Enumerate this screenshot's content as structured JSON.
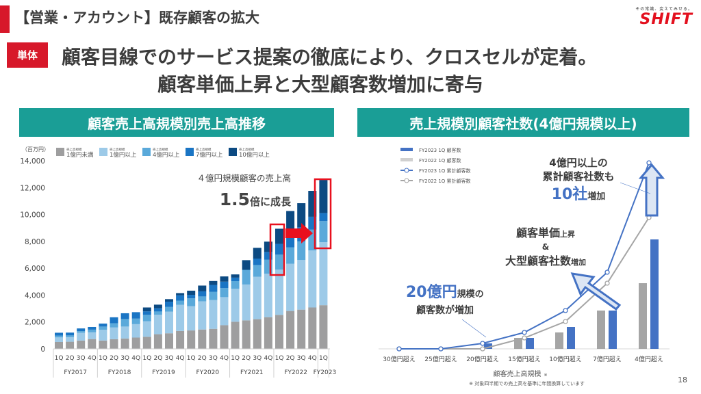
{
  "header": {
    "title": "【営業・アカウント】既存顧客の拡大",
    "logo_tagline": "その常識、変えてみせる。",
    "logo_text": "SHIFT"
  },
  "badge": "単体",
  "message": {
    "line1": "顧客目線でのサービス提案の徹底により、クロスセルが定着。",
    "line2": "顧客単価上昇と大型顧客数増加に寄与"
  },
  "colors": {
    "accent_red": "#d7182a",
    "teal": "#1a9e96",
    "blue": "#4472c4"
  },
  "footer": {
    "note": "※ 対象四半期での売上高を基準に年間換算しています",
    "page": "18"
  },
  "chart_data": [
    {
      "type": "bar",
      "stacked": true,
      "title": "顧客売上高規模別売上高推移",
      "ylabel": "（百万円）",
      "ylim": [
        0,
        14000
      ],
      "yticks": [
        "0",
        "2,000",
        "4,000",
        "6,000",
        "8,000",
        "10,000",
        "12,000",
        "14,000"
      ],
      "categories": [
        "1Q",
        "2Q",
        "3Q",
        "4Q",
        "1Q",
        "2Q",
        "3Q",
        "4Q",
        "1Q",
        "2Q",
        "3Q",
        "4Q",
        "1Q",
        "2Q",
        "3Q",
        "4Q",
        "1Q",
        "2Q",
        "3Q",
        "4Q",
        "1Q",
        "2Q",
        "3Q",
        "4Q",
        "1Q"
      ],
      "groups": [
        {
          "label": "FY2017",
          "n": 4
        },
        {
          "label": "FY2018",
          "n": 4
        },
        {
          "label": "FY2019",
          "n": 4
        },
        {
          "label": "FY2020",
          "n": 4
        },
        {
          "label": "FY2021",
          "n": 4
        },
        {
          "label": "FY2022",
          "n": 4
        },
        {
          "label": "FY2023",
          "n": 1
        }
      ],
      "legend_prefix": "売上高規模",
      "series": [
        {
          "name": "1億円未満",
          "color": "#9e9e9f",
          "values": [
            510,
            530,
            620,
            730,
            620,
            720,
            770,
            840,
            900,
            1090,
            1160,
            1330,
            1370,
            1440,
            1490,
            1760,
            2020,
            2120,
            2210,
            2360,
            2530,
            2820,
            2920,
            3080,
            3250
          ]
        },
        {
          "name": "1億円以上",
          "color": "#9dcae8",
          "values": [
            340,
            340,
            580,
            500,
            800,
            870,
            890,
            1000,
            1150,
            1450,
            1610,
            1950,
            1810,
            2100,
            2140,
            2090,
            2460,
            2670,
            3160,
            3230,
            3370,
            3510,
            3690,
            4250,
            4690
          ]
        },
        {
          "name": "4億円以上",
          "color": "#5aa9da",
          "values": [
            140,
            130,
            120,
            200,
            240,
            320,
            560,
            410,
            480,
            240,
            360,
            310,
            580,
            360,
            620,
            670,
            560,
            1090,
            870,
            1040,
            1110,
            1230,
            1390,
            1540,
            1570
          ]
        },
        {
          "name": "7億円以上",
          "color": "#1a75c4",
          "values": [
            210,
            210,
            200,
            200,
            220,
            440,
            430,
            480,
            260,
            240,
            380,
            390,
            260,
            380,
            510,
            480,
            260,
            0,
            480,
            580,
            800,
            1080,
            1060,
            960,
            600
          ]
        },
        {
          "name": "10億円以上",
          "color": "#0c4a82",
          "values": [
            0,
            0,
            0,
            0,
            0,
            0,
            0,
            0,
            290,
            270,
            190,
            170,
            310,
            430,
            290,
            390,
            240,
            720,
            800,
            770,
            1130,
            1620,
            1780,
            1930,
            2460
          ]
        }
      ],
      "annotation": {
        "line1": "４億円規模顧客の売上高",
        "big": "1.5",
        "rest": "倍に成長"
      }
    },
    {
      "type": "bar+line",
      "title": "売上規模別顧客社数(4億円規模以上)",
      "xlabel": "顧客売上高規模",
      "xlabel_mark": "※",
      "categories": [
        "30億円超え",
        "25億円超え",
        "20億円超え",
        "15億円超え",
        "10億円超え",
        "7億円超え",
        "4億円超え"
      ],
      "series": [
        {
          "name": "FY2023 1Q 顧客数",
          "kind": "bar",
          "color": "#4472c4",
          "values": [
            0,
            0,
            1,
            2,
            4,
            7,
            20
          ]
        },
        {
          "name": "FY2022 1Q 顧客数",
          "kind": "bar",
          "color": "#a5a5a5",
          "values": [
            0,
            0,
            0,
            2,
            3,
            7,
            12
          ]
        },
        {
          "name": "FY2023 1Q 累計顧客数",
          "kind": "line",
          "color": "#4472c4",
          "values": [
            0,
            0,
            1,
            3,
            7,
            14,
            34
          ]
        },
        {
          "name": "FY2022 1Q 累計顧客数",
          "kind": "line",
          "color": "#a5a5a5",
          "values": [
            0,
            0,
            0,
            2,
            5,
            12,
            24
          ]
        }
      ],
      "annotations": {
        "a1": {
          "l1": "4億円以上の",
          "l2": "累計顧客社数も",
          "big": "10社",
          "small": "増加"
        },
        "a2": {
          "l1a": "顧客単価",
          "l1b": "上昇",
          "amp": "&",
          "l2a": "大型顧客社数",
          "l2b": "増加"
        },
        "a3": {
          "big": "20億円",
          "small": "規模の",
          "l2": "顧客数が増加"
        }
      }
    }
  ]
}
